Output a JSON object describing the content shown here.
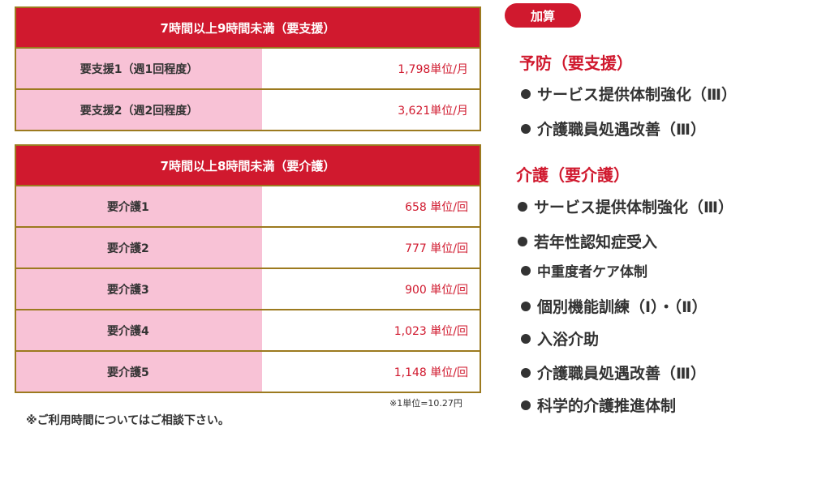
{
  "support_table": {
    "header": "7時間以上9時間未満（要支援）",
    "rows": [
      {
        "label": "要支援1（週1回程度）",
        "value": "1,798単位/月"
      },
      {
        "label": "要支援2（週2回程度）",
        "value": "3,621単位/月"
      }
    ]
  },
  "care_table": {
    "header": "7時間以上8時間未満（要介護）",
    "rows": [
      {
        "label": "要介護1",
        "value": "658 単位/回"
      },
      {
        "label": "要介護2",
        "value": "777 単位/回"
      },
      {
        "label": "要介護3",
        "value": "900 単位/回"
      },
      {
        "label": "要介護4",
        "value": "1,023 単位/回"
      },
      {
        "label": "要介護5",
        "value": "1,148 単位/回"
      }
    ]
  },
  "notes": {
    "usage_time": "※ご利用時間についてはご相談下さい。",
    "unit_rate": "※1単位=10.27円"
  },
  "addition": {
    "badge": "加算",
    "prevention": {
      "title": "予防（要支援）",
      "items": [
        "サービス提供体制強化（Ⅲ）",
        "介護職員処遇改善（Ⅲ）"
      ]
    },
    "care": {
      "title": "介護（要介護）",
      "items": [
        "サービス提供体制強化（Ⅲ）",
        "若年性認知症受入",
        "中重度者ケア体制",
        "個別機能訓練（Ⅰ）・（Ⅱ）",
        "入浴介助",
        "介護職員処遇改善（Ⅲ）",
        "科学的介護推進体制"
      ]
    }
  },
  "colors": {
    "accent_red": "#d0192e",
    "label_pink": "#f8c2d6",
    "border_gold": "#9c7a1f"
  }
}
